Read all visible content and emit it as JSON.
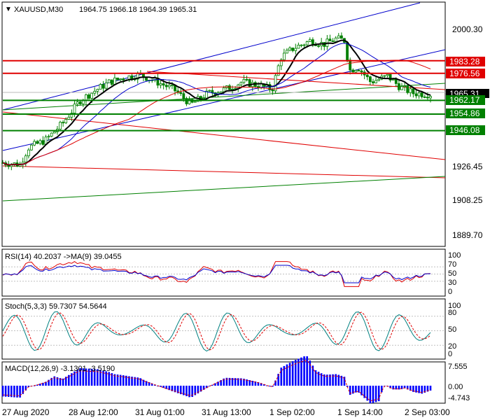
{
  "header": {
    "symbol": "XAUUSD,M30",
    "ohlc": "1964.75 1966.18 1964.39 1965.31"
  },
  "price_axis": {
    "ticks": [
      "2000.30",
      "1926.45",
      "1908.25",
      "1889.70"
    ],
    "current_price": "1965.31"
  },
  "levels": [
    {
      "value": 1983.28,
      "label": "1983.28",
      "kind": "resistance",
      "color": "#e00000"
    },
    {
      "value": 1976.56,
      "label": "1976.56",
      "kind": "resistance",
      "color": "#e00000"
    },
    {
      "value": 1962.17,
      "label": "1962.17",
      "kind": "support",
      "color": "#008000"
    },
    {
      "value": 1954.86,
      "label": "1954.86",
      "kind": "support",
      "color": "#008000"
    },
    {
      "value": 1946.08,
      "label": "1946.08",
      "kind": "support",
      "color": "#008000"
    }
  ],
  "indicators": {
    "rsi": {
      "label": "RSI(14) 40.2037  ->MA(9) 39.0455",
      "ticks": [
        "100",
        "70",
        "50",
        "30",
        "0"
      ]
    },
    "stoch": {
      "label": "Stoch(5,3,3) 59.7307 54.5644",
      "ticks": [
        "100",
        "80",
        "50",
        "20",
        "0"
      ]
    },
    "macd": {
      "label": "MACD(12,26,9) -3.1301 -3.5190",
      "ticks": [
        "7.555",
        "0.00",
        "-4.743"
      ]
    }
  },
  "time_axis": [
    "27 Aug 2020",
    "28 Aug 12:00",
    "31 Aug 01:00",
    "31 Aug 13:00",
    "1 Sep 02:00",
    "1 Sep 14:00",
    "2 Sep 03:00"
  ],
  "colors": {
    "candle": "#008000",
    "ma_fast": "#000000",
    "ma_mid": "#0000cc",
    "ma_slow": "#e00000",
    "resistance": "#e00000",
    "support": "#008000",
    "macd_hist": "#0000ff",
    "signal": "#e00000"
  },
  "chart_data": {
    "type": "candlestick",
    "instrument": "XAUUSD",
    "timeframe": "M30",
    "ylim": [
      1880,
      2020
    ],
    "close_path": [
      {
        "t": 0,
        "price": 1929
      },
      {
        "t": 0.04,
        "price": 1928
      },
      {
        "t": 0.06,
        "price": 1937
      },
      {
        "t": 0.1,
        "price": 1941
      },
      {
        "t": 0.14,
        "price": 1950
      },
      {
        "t": 0.18,
        "price": 1962
      },
      {
        "t": 0.22,
        "price": 1968
      },
      {
        "t": 0.25,
        "price": 1972
      },
      {
        "t": 0.28,
        "price": 1974
      },
      {
        "t": 0.32,
        "price": 1976
      },
      {
        "t": 0.36,
        "price": 1972
      },
      {
        "t": 0.4,
        "price": 1968
      },
      {
        "t": 0.44,
        "price": 1960
      },
      {
        "t": 0.48,
        "price": 1966
      },
      {
        "t": 0.52,
        "price": 1968
      },
      {
        "t": 0.56,
        "price": 1972
      },
      {
        "t": 0.6,
        "price": 1970
      },
      {
        "t": 0.63,
        "price": 1968
      },
      {
        "t": 0.65,
        "price": 1985
      },
      {
        "t": 0.68,
        "price": 1990
      },
      {
        "t": 0.72,
        "price": 1994
      },
      {
        "t": 0.75,
        "price": 1992
      },
      {
        "t": 0.78,
        "price": 1995
      },
      {
        "t": 0.8,
        "price": 1994
      },
      {
        "t": 0.81,
        "price": 1978
      },
      {
        "t": 0.83,
        "price": 1980
      },
      {
        "t": 0.86,
        "price": 1972
      },
      {
        "t": 0.9,
        "price": 1975
      },
      {
        "t": 0.93,
        "price": 1969
      },
      {
        "t": 0.96,
        "price": 1966
      },
      {
        "t": 1,
        "price": 1965.31
      }
    ],
    "y_tick_labels": [
      "2000.30",
      "1926.45",
      "1908.25",
      "1889.70"
    ]
  }
}
